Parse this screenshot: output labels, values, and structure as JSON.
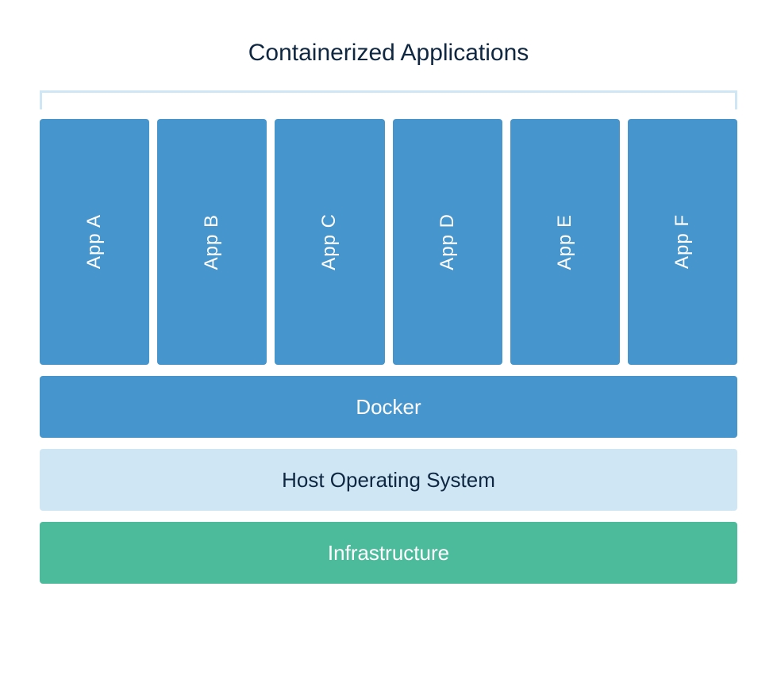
{
  "diagram": {
    "title": "Containerized Applications",
    "title_color": "#0f2740",
    "title_fontsize": 30,
    "bracket_color": "#cfe6f5",
    "apps": [
      {
        "label": "App A",
        "bg_color": "#4695cd",
        "text_color": "#ffffff"
      },
      {
        "label": "App B",
        "bg_color": "#4695cd",
        "text_color": "#ffffff"
      },
      {
        "label": "App C",
        "bg_color": "#4695cd",
        "text_color": "#ffffff"
      },
      {
        "label": "App D",
        "bg_color": "#4695cd",
        "text_color": "#ffffff"
      },
      {
        "label": "App E",
        "bg_color": "#4695cd",
        "text_color": "#ffffff"
      },
      {
        "label": "App F",
        "bg_color": "#4695cd",
        "text_color": "#ffffff"
      }
    ],
    "app_box_height": 310,
    "app_gap": 10,
    "app_fontsize": 24,
    "layers": [
      {
        "label": "Docker",
        "bg_color": "#4695cd",
        "text_color": "#ffffff"
      },
      {
        "label": "Host Operating System",
        "bg_color": "#cfe6f5",
        "text_color": "#0f2740"
      },
      {
        "label": "Infrastructure",
        "bg_color": "#4cbb9b",
        "text_color": "#ffffff"
      }
    ],
    "layer_height": 78,
    "layer_gap": 14,
    "layer_fontsize": 26,
    "border_radius": 4,
    "background_color": "#ffffff"
  }
}
